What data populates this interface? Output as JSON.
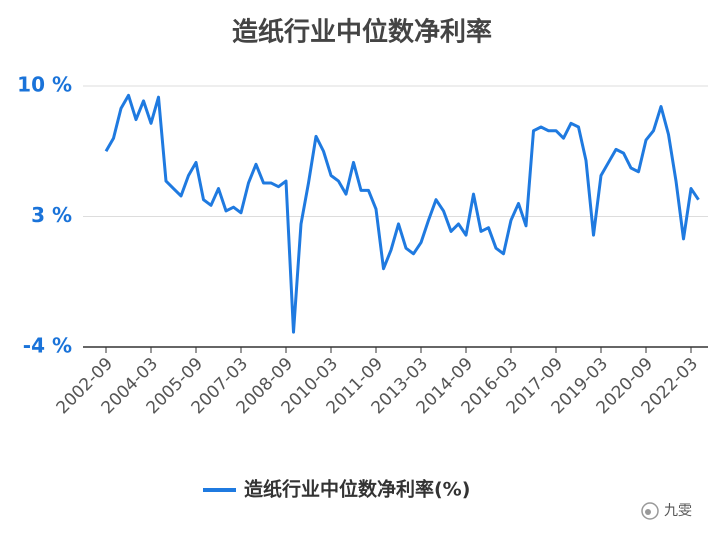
{
  "chart_data": {
    "type": "line",
    "title": "造纸行业中位数净利率",
    "categories": [
      "2002-09",
      null,
      null,
      null,
      null,
      null,
      "2004-03",
      null,
      null,
      null,
      null,
      null,
      "2005-09",
      null,
      null,
      null,
      null,
      null,
      "2007-03",
      null,
      null,
      null,
      null,
      null,
      "2008-09",
      null,
      null,
      null,
      null,
      null,
      "2010-03",
      null,
      null,
      null,
      null,
      null,
      "2011-09",
      null,
      null,
      null,
      null,
      null,
      "2013-03",
      null,
      null,
      null,
      null,
      null,
      "2014-09",
      null,
      null,
      null,
      null,
      null,
      "2016-03",
      null,
      null,
      null,
      null,
      null,
      "2017-09",
      null,
      null,
      null,
      null,
      null,
      "2019-03",
      null,
      null,
      null,
      null,
      null,
      "2020-09",
      null,
      null,
      null,
      null,
      null,
      "2022-03",
      null
    ],
    "series": [
      {
        "name": "造纸行业中位数净利率(%)",
        "color": "#1f7ae0",
        "values": [
          6.5,
          7.2,
          8.8,
          9.5,
          8.2,
          9.2,
          8.0,
          9.4,
          4.9,
          4.5,
          4.1,
          5.2,
          5.9,
          3.9,
          3.6,
          4.5,
          3.3,
          3.5,
          3.2,
          4.8,
          5.8,
          4.8,
          4.8,
          4.6,
          4.9,
          -3.2,
          2.6,
          4.8,
          7.3,
          6.5,
          5.2,
          4.9,
          4.2,
          5.9,
          4.4,
          4.4,
          3.4,
          0.2,
          1.2,
          2.6,
          1.3,
          1.0,
          1.6,
          2.8,
          3.9,
          3.3,
          2.2,
          2.6,
          2.0,
          4.2,
          2.2,
          2.4,
          1.3,
          1.0,
          2.8,
          3.7,
          2.5,
          7.6,
          7.8,
          7.6,
          7.6,
          7.2,
          8.0,
          7.8,
          6.0,
          2.0,
          5.2,
          5.9,
          6.6,
          6.4,
          5.6,
          5.4,
          7.1,
          7.6,
          8.9,
          7.4,
          4.9,
          1.8,
          4.5,
          3.9
        ]
      }
    ],
    "ylim": [
      -4,
      10
    ],
    "yticks": [
      {
        "value": -4,
        "label": "-4 %"
      },
      {
        "value": 3,
        "label": "3 %"
      },
      {
        "value": 10,
        "label": "10 %"
      }
    ],
    "grid": true,
    "legend": "bottom",
    "watermark": "九雯"
  }
}
